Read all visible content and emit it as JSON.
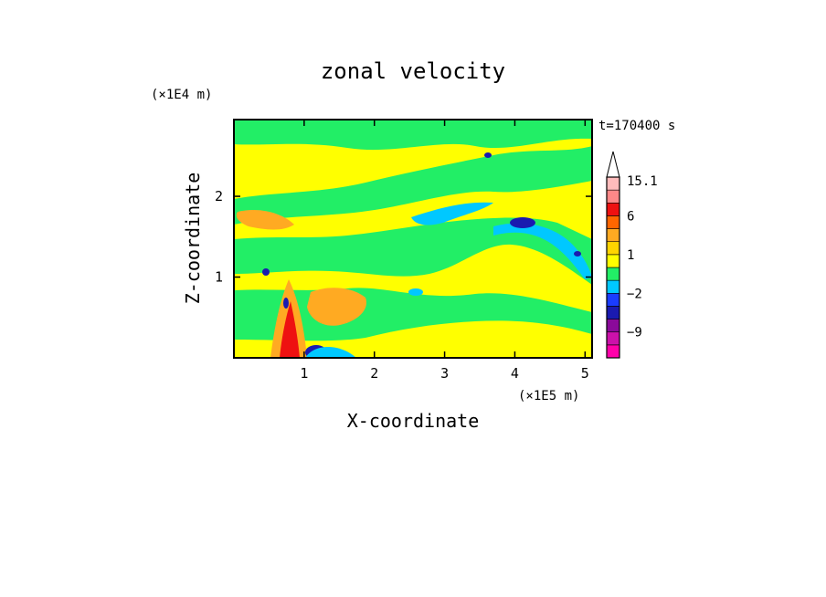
{
  "chart_data": {
    "type": "heatmap",
    "title": "zonal velocity",
    "xlabel": "X-coordinate",
    "ylabel": "Z-coordinate",
    "x_unit": "(×1E5 m)",
    "y_unit": "(×1E4 m)",
    "time_label": "t=170400 s",
    "xlim": [
      0,
      5.1
    ],
    "ylim": [
      0,
      2.95
    ],
    "x_ticks": [
      1,
      2,
      3,
      4,
      5
    ],
    "y_ticks": [
      1,
      2
    ],
    "colorbar": {
      "labels": [
        "15.1",
        "6",
        "1",
        "−2",
        "−9"
      ],
      "label_values": [
        15.1,
        6,
        1,
        -2,
        -9
      ],
      "colors": [
        "#ff00aa",
        "#cc11aa",
        "#8a0a9a",
        "#1a1ab0",
        "#1a3cff",
        "#00c8ff",
        "#22ee66",
        "#ffff00",
        "#ffd400",
        "#ffaa22",
        "#ff6600",
        "#ee1111",
        "#ff8888",
        "#ffbbbb"
      ],
      "extend_max": true
    },
    "colors": {
      "strong_negative": "#1a1ab0",
      "negative": "#00c8ff",
      "near_zero": "#22ee66",
      "weak_positive": "#ffff00",
      "positive": "#ffaa22",
      "strong_positive": "#ee1111"
    }
  }
}
